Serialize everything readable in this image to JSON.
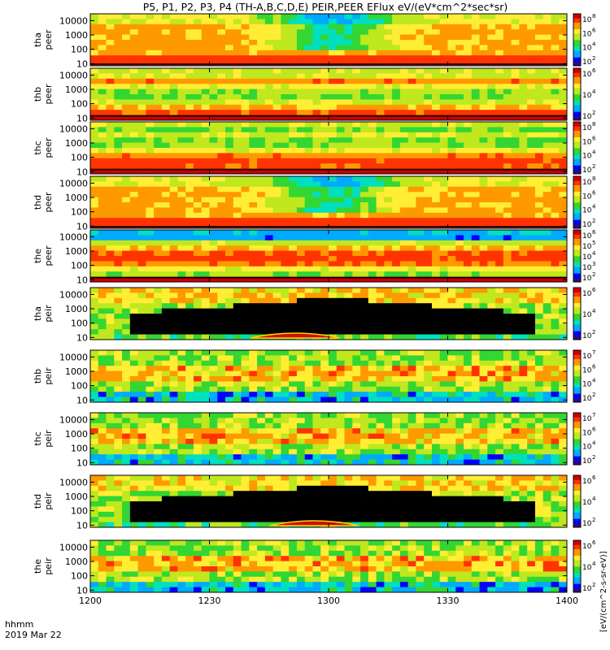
{
  "title": "P5, P1, P2, P3, P4 (TH-A,B,C,D,E) PEIR,PEER EFlux eV/(eV*cm^2*sec*sr)",
  "chart_data": {
    "type": "heatmap",
    "title": "P5, P1, P2, P3, P4 (TH-A,B,C,D,E) PEIR,PEER EFlux eV/(eV*cm^2*sec*sr)",
    "x_ticks": [
      "1200",
      "1230",
      "1300",
      "1330",
      "1400"
    ],
    "x_tick_times_hhmm": [
      1200,
      1230,
      1300,
      1330,
      1400
    ],
    "xlabel": "hhmm",
    "date": "2019 Mar 22",
    "xlim": [
      "12:00",
      "14:00"
    ],
    "y_scale": "log",
    "y_ticks": [
      "10",
      "100",
      "1000",
      "10000"
    ],
    "colorbar_label": "[eV/(cm^2-s-sr-eV)]",
    "colorbar_unit_short": "(4)",
    "colormap": [
      "#000000",
      "#2a0a8a",
      "#0000ff",
      "#00aaff",
      "#00e0c0",
      "#33d633",
      "#bfe81e",
      "#ffee33",
      "#ff9900",
      "#ff3300",
      "#cc0000"
    ],
    "panels": [
      {
        "probe": "tha",
        "species": "peer",
        "ylabel_1": "tha",
        "ylabel_2": "peer",
        "ylim": [
          7,
          30000
        ],
        "colorbar_ticks": [
          "10",
          "10",
          "10",
          "10"
        ],
        "colorbar_exp": [
          "2",
          "4",
          "6",
          "8"
        ],
        "pattern": "peer_dome"
      },
      {
        "probe": "thb",
        "species": "peer",
        "ylabel_1": "thb",
        "ylabel_2": "peer",
        "ylim": [
          7,
          30000
        ],
        "colorbar_ticks": [
          "10",
          "10",
          "10"
        ],
        "colorbar_exp": [
          "2",
          "4",
          "6"
        ],
        "pattern": "peer_band"
      },
      {
        "probe": "thc",
        "species": "peer",
        "ylabel_1": "thc",
        "ylabel_2": "peer",
        "ylim": [
          7,
          30000
        ],
        "colorbar_ticks": [
          "10",
          "10",
          "10",
          "10"
        ],
        "colorbar_exp": [
          "2",
          "4",
          "6",
          "8"
        ],
        "pattern": "peer_band"
      },
      {
        "probe": "thd",
        "species": "peer",
        "ylabel_1": "thd",
        "ylabel_2": "peer",
        "ylim": [
          7,
          30000
        ],
        "colorbar_ticks": [
          "10",
          "10",
          "10",
          "10"
        ],
        "colorbar_exp": [
          "2",
          "4",
          "6",
          "8"
        ],
        "pattern": "peer_dome"
      },
      {
        "probe": "the",
        "species": "peer",
        "ylabel_1": "the",
        "ylabel_2": "peer",
        "ylim": [
          7,
          30000
        ],
        "colorbar_ticks": [
          "10",
          "10",
          "10",
          "10",
          "10"
        ],
        "colorbar_exp": [
          "2",
          "3",
          "4",
          "5",
          "6"
        ],
        "pattern": "peer_band"
      },
      {
        "probe": "tha",
        "species": "peir",
        "ylabel_1": "tha",
        "ylabel_2": "peir",
        "ylim": [
          7,
          30000
        ],
        "colorbar_ticks": [
          "10",
          "10",
          "10"
        ],
        "colorbar_exp": [
          "2",
          "4",
          "6"
        ],
        "pattern": "peir_dome"
      },
      {
        "probe": "thb",
        "species": "peir",
        "ylabel_1": "thb",
        "ylabel_2": "peir",
        "ylim": [
          7,
          30000
        ],
        "colorbar_ticks": [
          "10",
          "10",
          "10",
          "10"
        ],
        "colorbar_exp": [
          "2",
          "4",
          "6",
          "7"
        ],
        "pattern": "peir_band"
      },
      {
        "probe": "thc",
        "species": "peir",
        "ylabel_1": "thc",
        "ylabel_2": "peir",
        "ylim": [
          7,
          30000
        ],
        "colorbar_ticks": [
          "10",
          "10",
          "10",
          "10"
        ],
        "colorbar_exp": [
          "2",
          "4",
          "6",
          "7"
        ],
        "pattern": "peir_band"
      },
      {
        "probe": "thd",
        "species": "peir",
        "ylabel_1": "thd",
        "ylabel_2": "peir",
        "ylim": [
          7,
          30000
        ],
        "colorbar_ticks": [
          "10",
          "10",
          "10"
        ],
        "colorbar_exp": [
          "2",
          "4",
          "6"
        ],
        "pattern": "peir_dome"
      },
      {
        "probe": "the",
        "species": "peir",
        "ylabel_1": "the",
        "ylabel_2": "peir",
        "ylim": [
          7,
          30000
        ],
        "colorbar_ticks": [
          "10",
          "10",
          "10"
        ],
        "colorbar_exp": [
          "2",
          "4",
          "6"
        ],
        "pattern": "peir_band"
      }
    ]
  }
}
